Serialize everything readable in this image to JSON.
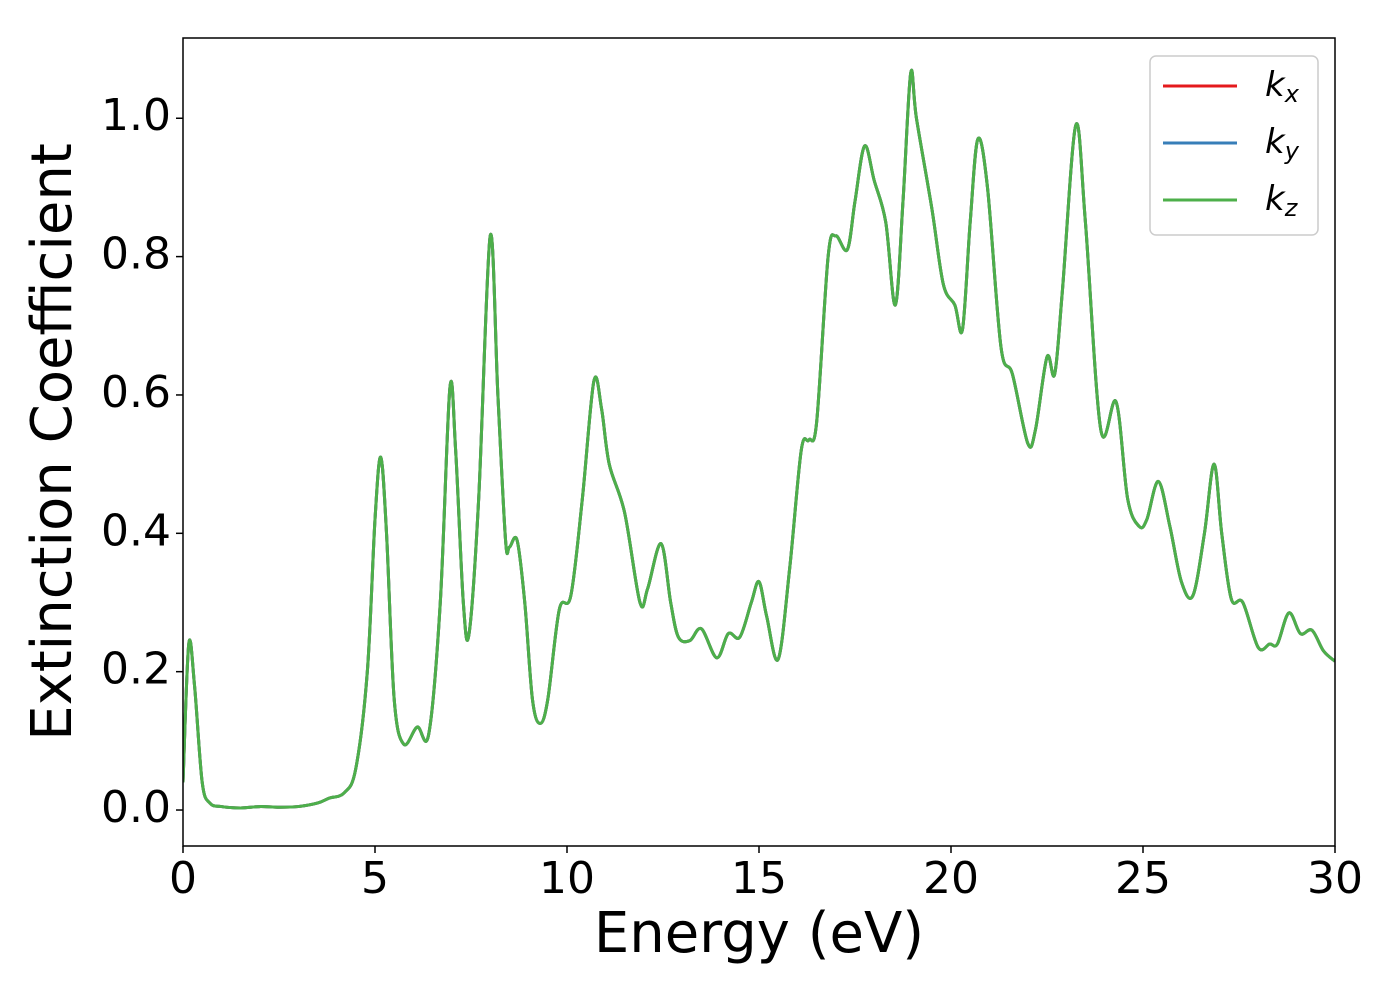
{
  "chart_data": {
    "type": "line",
    "xlabel": "Energy (eV)",
    "ylabel": "Extinction Coefficient",
    "x": [
      0,
      0.15,
      0.3,
      0.5,
      0.7,
      1.0,
      1.5,
      2,
      2.5,
      3,
      3.5,
      3.8,
      4.2,
      4.5,
      4.8,
      5.0,
      5.15,
      5.3,
      5.5,
      5.75,
      6.1,
      6.4,
      6.7,
      6.95,
      7.1,
      7.3,
      7.45,
      7.7,
      8.0,
      8.2,
      8.4,
      8.5,
      8.7,
      8.9,
      9.1,
      9.3,
      9.5,
      9.8,
      10.1,
      10.4,
      10.7,
      10.9,
      11.1,
      11.5,
      11.9,
      12.1,
      12.45,
      12.7,
      12.9,
      13.2,
      13.5,
      13.9,
      14.2,
      14.5,
      14.8,
      15.0,
      15.2,
      15.5,
      15.8,
      16.1,
      16.3,
      16.5,
      16.8,
      17.0,
      17.3,
      17.5,
      17.75,
      18.0,
      18.3,
      18.55,
      18.75,
      18.95,
      19.1,
      19.5,
      19.8,
      20.1,
      20.3,
      20.5,
      20.7,
      20.95,
      21.3,
      21.6,
      22.0,
      22.2,
      22.5,
      22.7,
      22.9,
      23.25,
      23.5,
      23.9,
      24.3,
      24.6,
      24.9,
      25.1,
      25.4,
      25.7,
      26.0,
      26.3,
      26.6,
      26.85,
      27.05,
      27.3,
      27.6,
      28.0,
      28.3,
      28.5,
      28.8,
      29.1,
      29.4,
      29.7,
      30.0
    ],
    "series": [
      {
        "name": "kx",
        "color": "#e41a1c",
        "values": [
          0.04,
          0.24,
          0.18,
          0.04,
          0.01,
          0.005,
          0.003,
          0.005,
          0.004,
          0.005,
          0.01,
          0.017,
          0.025,
          0.06,
          0.2,
          0.42,
          0.51,
          0.4,
          0.16,
          0.095,
          0.12,
          0.11,
          0.3,
          0.61,
          0.52,
          0.3,
          0.255,
          0.45,
          0.83,
          0.6,
          0.39,
          0.38,
          0.39,
          0.3,
          0.16,
          0.125,
          0.16,
          0.29,
          0.31,
          0.45,
          0.62,
          0.58,
          0.5,
          0.43,
          0.3,
          0.32,
          0.385,
          0.3,
          0.25,
          0.245,
          0.262,
          0.22,
          0.255,
          0.25,
          0.3,
          0.33,
          0.28,
          0.218,
          0.35,
          0.52,
          0.535,
          0.56,
          0.8,
          0.83,
          0.81,
          0.88,
          0.96,
          0.91,
          0.85,
          0.73,
          0.88,
          1.065,
          1.0,
          0.87,
          0.76,
          0.73,
          0.695,
          0.85,
          0.97,
          0.9,
          0.67,
          0.63,
          0.53,
          0.55,
          0.655,
          0.63,
          0.75,
          0.99,
          0.85,
          0.55,
          0.59,
          0.45,
          0.41,
          0.42,
          0.475,
          0.41,
          0.33,
          0.31,
          0.4,
          0.5,
          0.4,
          0.305,
          0.3,
          0.235,
          0.24,
          0.24,
          0.285,
          0.255,
          0.26,
          0.23,
          0.215
        ]
      },
      {
        "name": "ky",
        "color": "#377eb8",
        "values": [
          0.04,
          0.24,
          0.18,
          0.04,
          0.01,
          0.005,
          0.003,
          0.005,
          0.004,
          0.005,
          0.01,
          0.017,
          0.025,
          0.06,
          0.2,
          0.42,
          0.51,
          0.4,
          0.16,
          0.095,
          0.12,
          0.11,
          0.3,
          0.61,
          0.52,
          0.3,
          0.255,
          0.45,
          0.83,
          0.6,
          0.39,
          0.38,
          0.39,
          0.3,
          0.16,
          0.125,
          0.16,
          0.29,
          0.31,
          0.45,
          0.62,
          0.58,
          0.5,
          0.43,
          0.3,
          0.32,
          0.385,
          0.3,
          0.25,
          0.245,
          0.262,
          0.22,
          0.255,
          0.25,
          0.3,
          0.33,
          0.28,
          0.218,
          0.35,
          0.52,
          0.535,
          0.56,
          0.8,
          0.83,
          0.81,
          0.88,
          0.96,
          0.91,
          0.85,
          0.73,
          0.88,
          1.065,
          1.0,
          0.87,
          0.76,
          0.73,
          0.695,
          0.85,
          0.97,
          0.9,
          0.67,
          0.63,
          0.53,
          0.55,
          0.655,
          0.63,
          0.75,
          0.99,
          0.85,
          0.55,
          0.59,
          0.45,
          0.41,
          0.42,
          0.475,
          0.41,
          0.33,
          0.31,
          0.4,
          0.5,
          0.4,
          0.305,
          0.3,
          0.235,
          0.24,
          0.24,
          0.285,
          0.255,
          0.26,
          0.23,
          0.215
        ]
      },
      {
        "name": "kz",
        "color": "#4daf4a",
        "values": [
          0.04,
          0.24,
          0.18,
          0.04,
          0.01,
          0.005,
          0.003,
          0.005,
          0.004,
          0.005,
          0.01,
          0.017,
          0.025,
          0.06,
          0.2,
          0.42,
          0.51,
          0.4,
          0.16,
          0.095,
          0.12,
          0.11,
          0.3,
          0.61,
          0.52,
          0.3,
          0.255,
          0.45,
          0.83,
          0.6,
          0.39,
          0.38,
          0.39,
          0.3,
          0.16,
          0.125,
          0.16,
          0.29,
          0.31,
          0.45,
          0.62,
          0.58,
          0.5,
          0.43,
          0.3,
          0.32,
          0.385,
          0.3,
          0.25,
          0.245,
          0.262,
          0.22,
          0.255,
          0.25,
          0.3,
          0.33,
          0.28,
          0.218,
          0.35,
          0.52,
          0.535,
          0.56,
          0.8,
          0.83,
          0.81,
          0.88,
          0.96,
          0.91,
          0.85,
          0.73,
          0.88,
          1.065,
          1.0,
          0.87,
          0.76,
          0.73,
          0.695,
          0.85,
          0.97,
          0.9,
          0.67,
          0.63,
          0.53,
          0.55,
          0.655,
          0.63,
          0.75,
          0.99,
          0.85,
          0.55,
          0.59,
          0.45,
          0.41,
          0.42,
          0.475,
          0.41,
          0.33,
          0.31,
          0.4,
          0.5,
          0.4,
          0.305,
          0.3,
          0.235,
          0.24,
          0.24,
          0.285,
          0.255,
          0.26,
          0.23,
          0.215
        ]
      }
    ],
    "xlim": [
      0,
      30
    ],
    "xticks": [
      0,
      5,
      10,
      15,
      20,
      25,
      30
    ],
    "ylim": [
      -0.052,
      1.116
    ],
    "yticks": [
      {
        "value": 0,
        "label": "0.0"
      },
      {
        "value": 0.2,
        "label": "0.2"
      },
      {
        "value": 0.4,
        "label": "0.4"
      },
      {
        "value": 0.6,
        "label": "0.6"
      },
      {
        "value": 0.8,
        "label": "0.8"
      },
      {
        "value": 1,
        "label": "1.0"
      }
    ],
    "legend": "upper right",
    "grid": false
  }
}
